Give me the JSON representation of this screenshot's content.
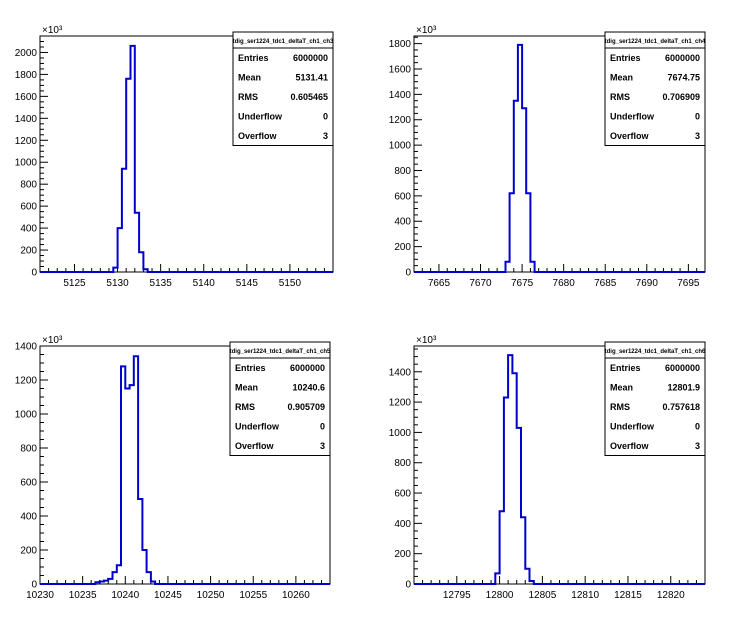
{
  "chart_data": [
    {
      "type": "histogram",
      "title": "tdig_ser1224_tdc1_deltaT_ch1_ch3",
      "y_multiplier": "×10³",
      "xlim": [
        5121,
        5155
      ],
      "ylim": [
        0,
        2150
      ],
      "xticks": [
        5125,
        5130,
        5135,
        5140,
        5145,
        5150
      ],
      "yticks": [
        0,
        200,
        400,
        600,
        800,
        1000,
        1200,
        1400,
        1600,
        1800,
        2000
      ],
      "bins": [
        {
          "x0": 5129.5,
          "x1": 5130.0,
          "y": 40
        },
        {
          "x0": 5130.0,
          "x1": 5130.5,
          "y": 400
        },
        {
          "x0": 5130.5,
          "x1": 5131.0,
          "y": 940
        },
        {
          "x0": 5131.0,
          "x1": 5131.5,
          "y": 1760
        },
        {
          "x0": 5131.5,
          "x1": 5132.0,
          "y": 2060
        },
        {
          "x0": 5132.0,
          "x1": 5132.5,
          "y": 540
        },
        {
          "x0": 5132.5,
          "x1": 5133.0,
          "y": 180
        },
        {
          "x0": 5133.0,
          "x1": 5133.5,
          "y": 25
        }
      ],
      "stats": [
        {
          "key": "Entries",
          "value": "6000000"
        },
        {
          "key": "Mean",
          "value": "5131.41"
        },
        {
          "key": "RMS",
          "value": "0.605465"
        },
        {
          "key": "Underflow",
          "value": "0"
        },
        {
          "key": "Overflow",
          "value": "3"
        }
      ]
    },
    {
      "type": "histogram",
      "title": "tdig_ser1224_tdc1_deltaT_ch1_ch4",
      "y_multiplier": "×10³",
      "xlim": [
        7662,
        7697
      ],
      "ylim": [
        0,
        1860
      ],
      "xticks": [
        7665,
        7670,
        7675,
        7680,
        7685,
        7690,
        7695
      ],
      "yticks": [
        0,
        200,
        400,
        600,
        800,
        1000,
        1200,
        1400,
        1600,
        1800
      ],
      "bins": [
        {
          "x0": 7673.0,
          "x1": 7673.5,
          "y": 80
        },
        {
          "x0": 7673.5,
          "x1": 7674.0,
          "y": 620
        },
        {
          "x0": 7674.0,
          "x1": 7674.5,
          "y": 1350
        },
        {
          "x0": 7674.5,
          "x1": 7675.0,
          "y": 1790
        },
        {
          "x0": 7675.0,
          "x1": 7675.5,
          "y": 1290
        },
        {
          "x0": 7675.5,
          "x1": 7676.0,
          "y": 620
        },
        {
          "x0": 7676.0,
          "x1": 7676.5,
          "y": 80
        }
      ],
      "stats": [
        {
          "key": "Entries",
          "value": "6000000"
        },
        {
          "key": "Mean",
          "value": "7674.75"
        },
        {
          "key": "RMS",
          "value": "0.706909"
        },
        {
          "key": "Underflow",
          "value": "0"
        },
        {
          "key": "Overflow",
          "value": "3"
        }
      ]
    },
    {
      "type": "histogram",
      "title": "tdig_ser1224_tdc1_deltaT_ch1_ch5",
      "y_multiplier": "×10³",
      "xlim": [
        10230,
        10264
      ],
      "ylim": [
        0,
        1400
      ],
      "xticks": [
        10230,
        10235,
        10240,
        10245,
        10250,
        10255,
        10260
      ],
      "yticks": [
        0,
        200,
        400,
        600,
        800,
        1000,
        1200,
        1400
      ],
      "bins": [
        {
          "x0": 10236.5,
          "x1": 10237.0,
          "y": 10
        },
        {
          "x0": 10237.0,
          "x1": 10237.5,
          "y": 15
        },
        {
          "x0": 10237.5,
          "x1": 10238.0,
          "y": 20
        },
        {
          "x0": 10238.0,
          "x1": 10238.5,
          "y": 30
        },
        {
          "x0": 10238.5,
          "x1": 10239.0,
          "y": 70
        },
        {
          "x0": 10239.0,
          "x1": 10239.5,
          "y": 110
        },
        {
          "x0": 10239.5,
          "x1": 10240.0,
          "y": 1280
        },
        {
          "x0": 10240.0,
          "x1": 10240.5,
          "y": 1150
        },
        {
          "x0": 10240.5,
          "x1": 10241.0,
          "y": 1170
        },
        {
          "x0": 10241.0,
          "x1": 10241.5,
          "y": 1340
        },
        {
          "x0": 10241.5,
          "x1": 10242.0,
          "y": 500
        },
        {
          "x0": 10242.0,
          "x1": 10242.5,
          "y": 200
        },
        {
          "x0": 10242.5,
          "x1": 10243.0,
          "y": 70
        },
        {
          "x0": 10243.0,
          "x1": 10243.5,
          "y": 15
        }
      ],
      "stats": [
        {
          "key": "Entries",
          "value": "6000000"
        },
        {
          "key": "Mean",
          "value": "10240.6"
        },
        {
          "key": "RMS",
          "value": "0.905709"
        },
        {
          "key": "Underflow",
          "value": "0"
        },
        {
          "key": "Overflow",
          "value": "3"
        }
      ]
    },
    {
      "type": "histogram",
      "title": "tdig_ser1224_tdc1_deltaT_ch1_ch6",
      "y_multiplier": "×10³",
      "xlim": [
        12790,
        12824
      ],
      "ylim": [
        0,
        1570
      ],
      "xticks": [
        12795,
        12800,
        12805,
        12810,
        12815,
        12820
      ],
      "yticks": [
        0,
        200,
        400,
        600,
        800,
        1000,
        1200,
        1400
      ],
      "bins": [
        {
          "x0": 12799.5,
          "x1": 12800.0,
          "y": 70
        },
        {
          "x0": 12800.0,
          "x1": 12800.5,
          "y": 480
        },
        {
          "x0": 12800.5,
          "x1": 12801.0,
          "y": 1230
        },
        {
          "x0": 12801.0,
          "x1": 12801.5,
          "y": 1510
        },
        {
          "x0": 12801.5,
          "x1": 12802.0,
          "y": 1390
        },
        {
          "x0": 12802.0,
          "x1": 12802.5,
          "y": 1030
        },
        {
          "x0": 12802.5,
          "x1": 12803.0,
          "y": 440
        },
        {
          "x0": 12803.0,
          "x1": 12803.5,
          "y": 100
        },
        {
          "x0": 12803.5,
          "x1": 12804.0,
          "y": 20
        }
      ],
      "stats": [
        {
          "key": "Entries",
          "value": "6000000"
        },
        {
          "key": "Mean",
          "value": "12801.9"
        },
        {
          "key": "RMS",
          "value": "0.757618"
        },
        {
          "key": "Underflow",
          "value": "0"
        },
        {
          "key": "Overflow",
          "value": "3"
        }
      ]
    }
  ]
}
